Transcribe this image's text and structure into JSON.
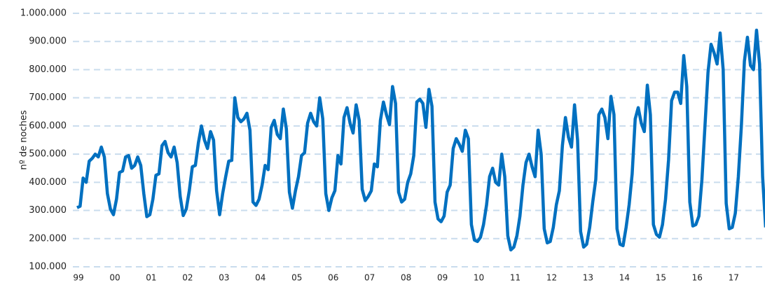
{
  "chart_data": {
    "type": "line",
    "y_label": "nº de noches",
    "categories": [
      "99",
      null,
      null,
      null,
      null,
      null,
      null,
      null,
      null,
      null,
      null,
      null,
      "00",
      null,
      null,
      null,
      null,
      null,
      null,
      null,
      null,
      null,
      null,
      null,
      "01",
      null,
      null,
      null,
      null,
      null,
      null,
      null,
      null,
      null,
      null,
      null,
      "02",
      null,
      null,
      null,
      null,
      null,
      null,
      null,
      null,
      null,
      null,
      null,
      "03",
      null,
      null,
      null,
      null,
      null,
      null,
      null,
      null,
      null,
      null,
      null,
      "04",
      null,
      null,
      null,
      null,
      null,
      null,
      null,
      null,
      null,
      null,
      null,
      "05",
      null,
      null,
      null,
      null,
      null,
      null,
      null,
      null,
      null,
      null,
      null,
      "06",
      null,
      null,
      null,
      null,
      null,
      null,
      null,
      null,
      null,
      null,
      null,
      "07",
      null,
      null,
      null,
      null,
      null,
      null,
      null,
      null,
      null,
      null,
      null,
      "08",
      null,
      null,
      null,
      null,
      null,
      null,
      null,
      null,
      null,
      null,
      null,
      "09",
      null,
      null,
      null,
      null,
      null,
      null,
      null,
      null,
      null,
      null,
      null,
      "10",
      null,
      null,
      null,
      null,
      null,
      null,
      null,
      null,
      null,
      null,
      null,
      "11",
      null,
      null,
      null,
      null,
      null,
      null,
      null,
      null,
      null,
      null,
      null,
      "12",
      null,
      null,
      null,
      null,
      null,
      null,
      null,
      null,
      null,
      null,
      null,
      "13",
      null,
      null,
      null,
      null,
      null,
      null,
      null,
      null,
      null,
      null,
      null,
      "14",
      null,
      null,
      null,
      null,
      null,
      null,
      null,
      null,
      null,
      null,
      null,
      "15",
      null,
      null,
      null,
      null,
      null,
      null,
      null,
      null,
      null,
      null,
      null,
      "16",
      null,
      null,
      null,
      null,
      null,
      null,
      null,
      null,
      null,
      null,
      null,
      "17",
      null,
      null,
      null,
      null,
      null,
      null,
      null,
      null,
      null,
      null,
      null
    ],
    "series": [
      {
        "color": "#0070c0",
        "values": [
          310000,
          315000,
          415000,
          400000,
          475000,
          485000,
          500000,
          490000,
          525000,
          490000,
          360000,
          305000,
          285000,
          340000,
          435000,
          440000,
          490000,
          495000,
          450000,
          460000,
          490000,
          460000,
          360000,
          278000,
          285000,
          340000,
          425000,
          430000,
          530000,
          545000,
          505000,
          490000,
          525000,
          470000,
          350000,
          282000,
          305000,
          370000,
          455000,
          460000,
          540000,
          600000,
          550000,
          520000,
          580000,
          550000,
          370000,
          285000,
          360000,
          420000,
          475000,
          478000,
          700000,
          630000,
          615000,
          625000,
          645000,
          585000,
          330000,
          318000,
          340000,
          390000,
          460000,
          445000,
          595000,
          620000,
          570000,
          555000,
          660000,
          590000,
          365000,
          308000,
          370000,
          420000,
          495000,
          505000,
          610000,
          645000,
          615000,
          600000,
          700000,
          625000,
          360000,
          300000,
          345000,
          370000,
          495000,
          465000,
          630000,
          665000,
          610000,
          575000,
          675000,
          620000,
          375000,
          335000,
          350000,
          370000,
          465000,
          455000,
          620000,
          685000,
          640000,
          605000,
          740000,
          680000,
          365000,
          330000,
          340000,
          400000,
          430000,
          495000,
          685000,
          695000,
          680000,
          595000,
          730000,
          670000,
          330000,
          270000,
          260000,
          280000,
          365000,
          390000,
          520000,
          555000,
          535000,
          510000,
          585000,
          555000,
          250000,
          195000,
          190000,
          205000,
          250000,
          320000,
          420000,
          450000,
          400000,
          390000,
          500000,
          420000,
          210000,
          160000,
          170000,
          210000,
          280000,
          390000,
          470000,
          500000,
          455000,
          420000,
          585000,
          500000,
          235000,
          185000,
          190000,
          240000,
          320000,
          370000,
          530000,
          630000,
          560000,
          525000,
          675000,
          550000,
          225000,
          170000,
          180000,
          240000,
          330000,
          410000,
          640000,
          660000,
          630000,
          555000,
          705000,
          640000,
          235000,
          180000,
          175000,
          240000,
          320000,
          430000,
          625000,
          665000,
          610000,
          580000,
          745000,
          640000,
          250000,
          215000,
          205000,
          250000,
          340000,
          480000,
          690000,
          720000,
          720000,
          680000,
          850000,
          740000,
          330000,
          245000,
          250000,
          280000,
          410000,
          600000,
          790000,
          890000,
          860000,
          820000,
          930000,
          800000,
          325000,
          235000,
          240000,
          290000,
          420000,
          600000,
          830000,
          915000,
          815000,
          800000,
          940000,
          820000,
          420000,
          240000
        ]
      }
    ],
    "ylim": [
      100000,
      1000000
    ],
    "yticks": [
      {
        "value": 100000,
        "label": "100.000"
      },
      {
        "value": 200000,
        "label": "200.000"
      },
      {
        "value": 300000,
        "label": "300.000"
      },
      {
        "value": 400000,
        "label": "400.000"
      },
      {
        "value": 500000,
        "label": "500.000"
      },
      {
        "value": 600000,
        "label": "600.000"
      },
      {
        "value": 700000,
        "label": "700.000"
      },
      {
        "value": 800000,
        "label": "800.000"
      },
      {
        "value": 900000,
        "label": "900.000"
      },
      {
        "value": 1000000,
        "label": "1.000.000"
      }
    ],
    "grid": true
  }
}
